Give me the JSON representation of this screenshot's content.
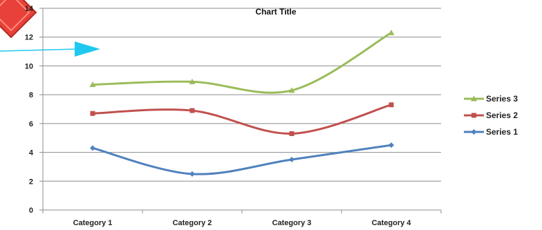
{
  "chart_data": {
    "type": "line",
    "smooth": true,
    "title": "Chart Title",
    "categories": [
      "Category 1",
      "Category 2",
      "Category 3",
      "Category 4"
    ],
    "ylim": [
      0,
      14
    ],
    "yticks": [
      0,
      2,
      4,
      6,
      8,
      10,
      12,
      14
    ],
    "grid": true,
    "legend_position": "right",
    "series": [
      {
        "name": "Series 1",
        "color": "#4f81bd",
        "marker": "diamond",
        "values": [
          4.3,
          2.5,
          3.5,
          4.5
        ]
      },
      {
        "name": "Series 2",
        "color": "#c0504d",
        "marker": "square",
        "values": [
          6.7,
          6.9,
          5.3,
          7.3
        ]
      },
      {
        "name": "Series 3",
        "color": "#9bbb59",
        "marker": "triangle",
        "values": [
          8.7,
          8.9,
          8.3,
          12.3
        ]
      }
    ],
    "legend_order": [
      "Series 3",
      "Series 2",
      "Series 1"
    ]
  },
  "decorations": {
    "corner_icon": "red-diamond-icon",
    "corner_icon_color": "#e8413a",
    "pointer_arrow": "cyan-arrow-icon",
    "pointer_arrow_color": "#1fc8f0"
  }
}
